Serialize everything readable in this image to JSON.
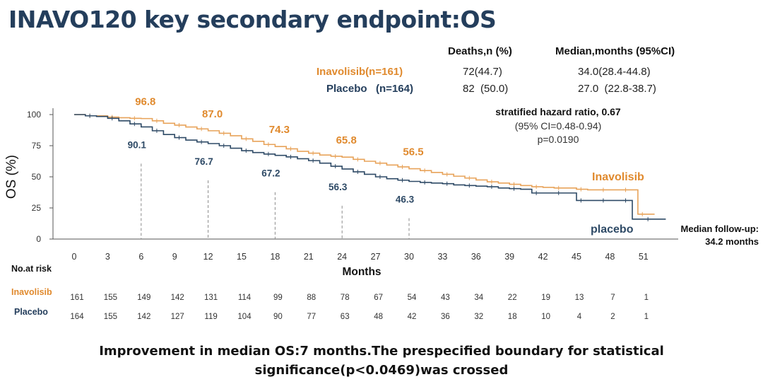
{
  "slide": {
    "title": "INAVO120 key secondary endpoint:OS",
    "conclusion_line1": "Improvement  in  median OS:7 months.The prespecified boundary for statistical",
    "conclusion_line2": "significance(p<0.0469)was crossed"
  },
  "summary_table": {
    "col_deaths": "Deaths,n (%)",
    "col_median": "Median,months (95%CI)",
    "rows": [
      {
        "arm": "Inavolisib(n=161)",
        "deaths": "72(44.7)",
        "median": "34.0(28.4-44.8)"
      },
      {
        "arm": "Placebo   (n=164)",
        "deaths": "82  (50.0)",
        "median": "27.0  (22.8-38.7)"
      }
    ]
  },
  "hazard": {
    "title": "stratified hazard ratio, 0.67",
    "ci": "(95% CI=0.48-0.94)",
    "p": "p=0.0190"
  },
  "followup": {
    "line1": "Median follow-up:",
    "line2": "34.2 months"
  },
  "risk_table": {
    "title": "No.at risk",
    "rows": [
      {
        "label": "Inavolisib",
        "values": [
          "161",
          "155",
          "149",
          "142",
          "131",
          "114",
          "99",
          "88",
          "78",
          "67",
          "54",
          "43",
          "34",
          "22",
          "19",
          "13",
          "7",
          "1"
        ]
      },
      {
        "label": "Placebo",
        "values": [
          "164",
          "155",
          "142",
          "127",
          "119",
          "104",
          "90",
          "77",
          "63",
          "48",
          "42",
          "36",
          "32",
          "18",
          "10",
          "4",
          "2",
          "1"
        ]
      }
    ]
  },
  "colors": {
    "inavolisib": "#e8a35a",
    "inavolisib_label": "#e08a2e",
    "placebo": "#2e4a66",
    "placebo_label": "#2e4a66",
    "axis": "#555555",
    "guide": "#8a8a8a"
  },
  "chart_data": {
    "type": "line",
    "title": "",
    "xlabel": "Months",
    "ylabel": "OS   (%)",
    "xlim": [
      0,
      54
    ],
    "ylim": [
      0,
      100
    ],
    "x_ticks": [
      "0",
      "3",
      "6",
      "9",
      "12",
      "15",
      "18",
      "21",
      "24",
      "27",
      "30",
      "33",
      "36",
      "39",
      "42",
      "45",
      "48",
      "51"
    ],
    "y_ticks": [
      "0",
      "25",
      "50",
      "75",
      "100"
    ],
    "grid": false,
    "legend": "inline labels at right end of curves",
    "series": [
      {
        "name": "Inavolisib",
        "points": [
          [
            0,
            100
          ],
          [
            1,
            99
          ],
          [
            2,
            99
          ],
          [
            3,
            98
          ],
          [
            4,
            97.5
          ],
          [
            5,
            97
          ],
          [
            6,
            96.8
          ],
          [
            7,
            95
          ],
          [
            8,
            93
          ],
          [
            9,
            91.5
          ],
          [
            10,
            90
          ],
          [
            11,
            88.5
          ],
          [
            12,
            87
          ],
          [
            13,
            85
          ],
          [
            14,
            83
          ],
          [
            15,
            80.5
          ],
          [
            16,
            78.5
          ],
          [
            17,
            76
          ],
          [
            18,
            74.3
          ],
          [
            19,
            72.5
          ],
          [
            20,
            70.5
          ],
          [
            21,
            69
          ],
          [
            22,
            67.5
          ],
          [
            23,
            66.5
          ],
          [
            24,
            65.8
          ],
          [
            25,
            64
          ],
          [
            26,
            62.5
          ],
          [
            27,
            61
          ],
          [
            28,
            59.5
          ],
          [
            29,
            58
          ],
          [
            30,
            56.5
          ],
          [
            31,
            55
          ],
          [
            32,
            53.5
          ],
          [
            33,
            52
          ],
          [
            34,
            50.5
          ],
          [
            35,
            49
          ],
          [
            36,
            47.5
          ],
          [
            37,
            46
          ],
          [
            38,
            45
          ],
          [
            39,
            44
          ],
          [
            40,
            43
          ],
          [
            41,
            42
          ],
          [
            42,
            41.5
          ],
          [
            43,
            41
          ],
          [
            44,
            41
          ],
          [
            45,
            40
          ],
          [
            46,
            39.5
          ],
          [
            47,
            39.5
          ],
          [
            48,
            39.5
          ],
          [
            49,
            39.5
          ],
          [
            50,
            39.5
          ],
          [
            50.5,
            20
          ],
          [
            52,
            20
          ]
        ],
        "data_labels": [
          {
            "x": 6,
            "y": 96.8,
            "label": "96.8"
          },
          {
            "x": 12,
            "y": 87.0,
            "label": "87.0"
          },
          {
            "x": 18,
            "y": 74.3,
            "label": "74.3"
          },
          {
            "x": 24,
            "y": 65.8,
            "label": "65.8"
          },
          {
            "x": 30,
            "y": 56.5,
            "label": "56.5"
          }
        ],
        "end_label": "Inavolisib"
      },
      {
        "name": "placebo",
        "points": [
          [
            0,
            100
          ],
          [
            1,
            99
          ],
          [
            2,
            98.5
          ],
          [
            3,
            97
          ],
          [
            4,
            95
          ],
          [
            5,
            92.5
          ],
          [
            6,
            90.1
          ],
          [
            7,
            87
          ],
          [
            8,
            84
          ],
          [
            9,
            81.5
          ],
          [
            10,
            79.5
          ],
          [
            11,
            78
          ],
          [
            12,
            76.7
          ],
          [
            13,
            75
          ],
          [
            14,
            73
          ],
          [
            15,
            71
          ],
          [
            16,
            69.5
          ],
          [
            17,
            68.3
          ],
          [
            18,
            67.2
          ],
          [
            19,
            66
          ],
          [
            20,
            64.5
          ],
          [
            21,
            63
          ],
          [
            22,
            61
          ],
          [
            23,
            58.5
          ],
          [
            24,
            56.3
          ],
          [
            25,
            54
          ],
          [
            26,
            52
          ],
          [
            27,
            50
          ],
          [
            28,
            48.5
          ],
          [
            29,
            47.3
          ],
          [
            30,
            46.3
          ],
          [
            31,
            45.5
          ],
          [
            32,
            45
          ],
          [
            33,
            44.5
          ],
          [
            34,
            43.5
          ],
          [
            35,
            43
          ],
          [
            36,
            42.5
          ],
          [
            37,
            42
          ],
          [
            38,
            41
          ],
          [
            39,
            40.5
          ],
          [
            40,
            40
          ],
          [
            41,
            37
          ],
          [
            42,
            37
          ],
          [
            43,
            37
          ],
          [
            44,
            37
          ],
          [
            45,
            31
          ],
          [
            46,
            31
          ],
          [
            47,
            31
          ],
          [
            48,
            31
          ],
          [
            49,
            31
          ],
          [
            50,
            16
          ],
          [
            51,
            16
          ],
          [
            53,
            16
          ]
        ],
        "data_labels": [
          {
            "x": 6,
            "y": 90.1,
            "label": "90.1"
          },
          {
            "x": 12,
            "y": 76.7,
            "label": "76.7"
          },
          {
            "x": 18,
            "y": 67.2,
            "label": "67.2"
          },
          {
            "x": 24,
            "y": 56.3,
            "label": "56.3"
          },
          {
            "x": 30,
            "y": 46.3,
            "label": "46.3"
          }
        ],
        "end_label": "placebo"
      }
    ]
  }
}
